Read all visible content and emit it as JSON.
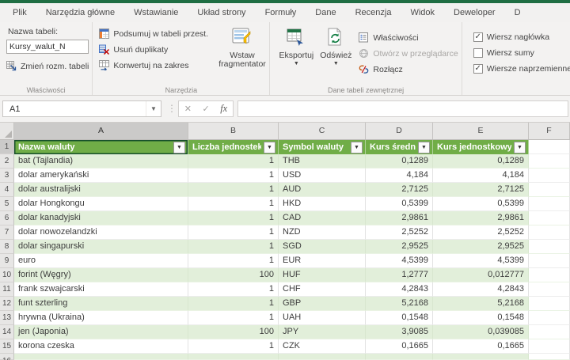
{
  "tabs": {
    "items": [
      "Plik",
      "Narzędzia główne",
      "Wstawianie",
      "Układ strony",
      "Formuły",
      "Dane",
      "Recenzja",
      "Widok",
      "Deweloper",
      "D"
    ]
  },
  "ribbon": {
    "properties_group": {
      "label": "Właściwości",
      "table_name_label": "Nazwa tabeli:",
      "table_name_value": "Kursy_walut_N",
      "resize_button": "Zmień rozm. tabeli"
    },
    "tools_group": {
      "label": "Narzędzia",
      "buttons": [
        "Podsumuj w tabeli przest.",
        "Usuń duplikaty",
        "Konwertuj na zakres"
      ],
      "slicer_button": "Wstaw fragmentator"
    },
    "external_group": {
      "label": "Dane tabeli zewnętrznej",
      "export_button": "Eksportuj",
      "refresh_button": "Odśwież",
      "small_buttons": [
        {
          "label": "Właściwości",
          "enabled": true
        },
        {
          "label": "Otwórz w przeglądarce",
          "enabled": false
        },
        {
          "label": "Rozłącz",
          "enabled": true
        }
      ]
    },
    "style_options_group": {
      "checkboxes": [
        {
          "label": "Wiersz nagłówka",
          "checked": true
        },
        {
          "label": "Wiersz sumy",
          "checked": false
        },
        {
          "label": "Wiersze naprzemienne",
          "checked": true
        }
      ]
    }
  },
  "formula_bar": {
    "name_box": "A1",
    "formula": ""
  },
  "sheet": {
    "column_letters": [
      "A",
      "B",
      "C",
      "D",
      "E",
      "F"
    ],
    "headers": [
      "Nazwa waluty",
      "Liczba jednostek",
      "Symbol waluty",
      "Kurs średni",
      "Kurs jednostkowy"
    ],
    "selected_cell": "A1",
    "rows": [
      [
        2,
        "bat (Tajlandia)",
        "1",
        "THB",
        "0,1289",
        "0,1289"
      ],
      [
        3,
        "dolar amerykański",
        "1",
        "USD",
        "4,184",
        "4,184"
      ],
      [
        4,
        "dolar australijski",
        "1",
        "AUD",
        "2,7125",
        "2,7125"
      ],
      [
        5,
        "dolar Hongkongu",
        "1",
        "HKD",
        "0,5399",
        "0,5399"
      ],
      [
        6,
        "dolar kanadyjski",
        "1",
        "CAD",
        "2,9861",
        "2,9861"
      ],
      [
        7,
        "dolar nowozelandzki",
        "1",
        "NZD",
        "2,5252",
        "2,5252"
      ],
      [
        8,
        "dolar singapurski",
        "1",
        "SGD",
        "2,9525",
        "2,9525"
      ],
      [
        9,
        "euro",
        "1",
        "EUR",
        "4,5399",
        "4,5399"
      ],
      [
        10,
        "forint (Węgry)",
        "100",
        "HUF",
        "1,2777",
        "0,012777"
      ],
      [
        11,
        "frank szwajcarski",
        "1",
        "CHF",
        "4,2843",
        "4,2843"
      ],
      [
        12,
        "funt szterling",
        "1",
        "GBP",
        "5,2168",
        "5,2168"
      ],
      [
        13,
        "hrywna (Ukraina)",
        "1",
        "UAH",
        "0,1548",
        "0,1548"
      ],
      [
        14,
        "jen (Japonia)",
        "100",
        "JPY",
        "3,9085",
        "0,039085"
      ],
      [
        15,
        "korona czeska",
        "1",
        "CZK",
        "0,1665",
        "0,1665"
      ]
    ]
  },
  "colors": {
    "excel_green": "#1f6e43",
    "table_header_green": "#70ad47",
    "banded_row_green": "#e2efda"
  }
}
